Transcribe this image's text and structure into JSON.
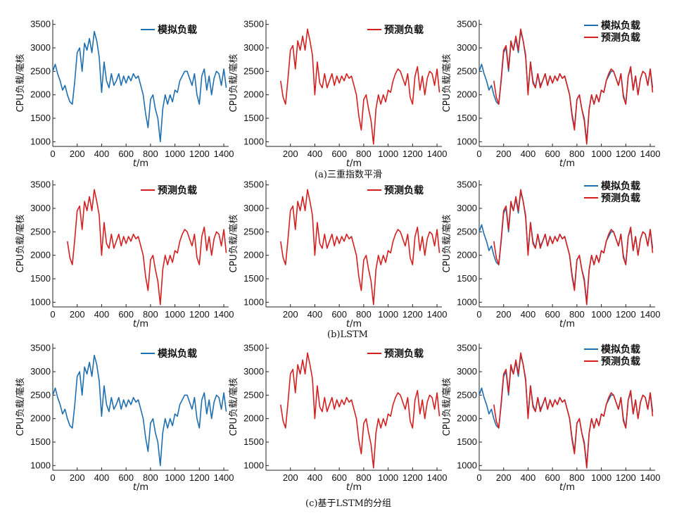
{
  "colors": {
    "simulated": "#1f6fb0",
    "predicted": "#d42020"
  },
  "captions": [
    "(a)三重指数平滑",
    "(b)LSTM",
    "(c)基于LSTM的分组"
  ],
  "legend_labels": {
    "simulated": "模拟负载",
    "predicted": "预测负载"
  },
  "chart_data": [
    {
      "type": "line",
      "row": 0,
      "col": 0,
      "xlabel": "t/m",
      "ylabel": "CPU负载/毫核",
      "xlim": [
        0,
        1440
      ],
      "ylim": [
        900,
        3600
      ],
      "xticks": [
        0,
        200,
        400,
        600,
        800,
        1000,
        1200,
        1400
      ],
      "yticks": [
        1000,
        1500,
        2000,
        2500,
        3000,
        3500
      ],
      "series": [
        "simulated"
      ],
      "legend": "top-right"
    },
    {
      "type": "line",
      "row": 0,
      "col": 1,
      "xlabel": "t/m",
      "ylabel": "CPU负载/毫核",
      "xlim": [
        0,
        1440
      ],
      "ylim": [
        900,
        3600
      ],
      "xticks": [
        200,
        400,
        600,
        800,
        1000,
        1200,
        1400
      ],
      "yticks": [
        1000,
        1500,
        2000,
        2500,
        3000,
        3500
      ],
      "series": [
        "predicted"
      ],
      "legend": "top-right"
    },
    {
      "type": "line",
      "row": 0,
      "col": 2,
      "xlabel": "t/m",
      "ylabel": "CPU负载/毫核",
      "xlim": [
        0,
        1440
      ],
      "ylim": [
        900,
        3600
      ],
      "xticks": [
        0,
        200,
        400,
        600,
        800,
        1000,
        1200,
        1400
      ],
      "yticks": [
        1000,
        1500,
        2000,
        2500,
        3000,
        3500
      ],
      "series": [
        "simulated",
        "predicted"
      ],
      "legend": "top-right"
    },
    {
      "type": "line",
      "row": 1,
      "col": 0,
      "xlabel": "t/m",
      "ylabel": "CPU负载/毫核",
      "xlim": [
        0,
        1440
      ],
      "ylim": [
        900,
        3600
      ],
      "xticks": [
        0,
        200,
        400,
        600,
        800,
        1000,
        1200,
        1400
      ],
      "yticks": [
        1000,
        1500,
        2000,
        2500,
        3000,
        3500
      ],
      "series": [
        "predicted"
      ],
      "legend": "top-right"
    },
    {
      "type": "line",
      "row": 1,
      "col": 1,
      "xlabel": "t/m",
      "ylabel": "CPU负载/毫核",
      "xlim": [
        0,
        1440
      ],
      "ylim": [
        900,
        3600
      ],
      "xticks": [
        200,
        400,
        600,
        800,
        1000,
        1200,
        1400
      ],
      "yticks": [
        1000,
        1500,
        2000,
        2500,
        3000,
        3500
      ],
      "series": [
        "predicted"
      ],
      "legend": "top-right"
    },
    {
      "type": "line",
      "row": 1,
      "col": 2,
      "xlabel": "t/m",
      "ylabel": "CPU负载/毫核",
      "xlim": [
        0,
        1440
      ],
      "ylim": [
        900,
        3600
      ],
      "xticks": [
        0,
        200,
        400,
        600,
        800,
        1000,
        1200,
        1400
      ],
      "yticks": [
        1000,
        1500,
        2000,
        2500,
        3000,
        3500
      ],
      "series": [
        "simulated",
        "predicted"
      ],
      "legend": "top-right"
    },
    {
      "type": "line",
      "row": 2,
      "col": 0,
      "xlabel": "t/m",
      "ylabel": "CPU负载/毫核",
      "xlim": [
        0,
        1440
      ],
      "ylim": [
        900,
        3600
      ],
      "xticks": [
        0,
        200,
        400,
        600,
        800,
        1000,
        1200,
        1400
      ],
      "yticks": [
        1000,
        1500,
        2000,
        2500,
        3000,
        3500
      ],
      "series": [
        "simulated"
      ],
      "legend": "top-right"
    },
    {
      "type": "line",
      "row": 2,
      "col": 1,
      "xlabel": "t/m",
      "ylabel": "CPU负载/毫核",
      "xlim": [
        0,
        1440
      ],
      "ylim": [
        900,
        3600
      ],
      "xticks": [
        200,
        400,
        600,
        800,
        1000,
        1200,
        1400
      ],
      "yticks": [
        1000,
        1500,
        2000,
        2500,
        3000,
        3500
      ],
      "series": [
        "predicted"
      ],
      "legend": "top-right"
    },
    {
      "type": "line",
      "row": 2,
      "col": 2,
      "xlabel": "t/m",
      "ylabel": "CPU负载/毫核",
      "xlim": [
        0,
        1440
      ],
      "ylim": [
        900,
        3600
      ],
      "xticks": [
        0,
        200,
        400,
        600,
        800,
        1000,
        1200,
        1400
      ],
      "yticks": [
        1000,
        1500,
        2000,
        2500,
        3000,
        3500
      ],
      "series": [
        "simulated",
        "predicted"
      ],
      "legend": "top-right"
    }
  ],
  "series_data": {
    "simulated": {
      "x": [
        0,
        20,
        40,
        60,
        80,
        100,
        120,
        140,
        160,
        180,
        200,
        220,
        240,
        260,
        280,
        300,
        320,
        340,
        360,
        380,
        400,
        420,
        440,
        460,
        480,
        500,
        520,
        540,
        560,
        580,
        600,
        620,
        640,
        660,
        680,
        700,
        720,
        740,
        760,
        780,
        800,
        820,
        840,
        860,
        880,
        900,
        920,
        940,
        960,
        980,
        1000,
        1020,
        1040,
        1060,
        1080,
        1100,
        1120,
        1140,
        1160,
        1180,
        1200,
        1220,
        1240,
        1260,
        1280,
        1300,
        1320,
        1340,
        1360,
        1380,
        1400,
        1420
      ],
      "y": [
        2500,
        2650,
        2450,
        2300,
        2100,
        2200,
        2000,
        1850,
        1800,
        2300,
        2900,
        3000,
        2500,
        3100,
        2950,
        3200,
        2900,
        3350,
        3150,
        2800,
        2050,
        2700,
        2300,
        2150,
        2450,
        2200,
        2300,
        2450,
        2200,
        2400,
        2250,
        2400,
        2300,
        2450,
        2350,
        2400,
        2200,
        2000,
        1600,
        1300,
        1900,
        2000,
        1700,
        1500,
        1000,
        1700,
        2000,
        1800,
        2000,
        1850,
        2100,
        2050,
        2300,
        2400,
        2500,
        2500,
        2350,
        2200,
        2450,
        2000,
        1800,
        2400,
        2550,
        2100,
        2400,
        2000,
        2350,
        2500,
        2450,
        2200,
        2550,
        2150
      ]
    },
    "predicted": {
      "x": [
        120,
        140,
        160,
        180,
        200,
        220,
        240,
        260,
        280,
        300,
        320,
        340,
        360,
        380,
        400,
        420,
        440,
        460,
        480,
        500,
        520,
        540,
        560,
        580,
        600,
        620,
        640,
        660,
        680,
        700,
        720,
        740,
        760,
        780,
        800,
        820,
        840,
        860,
        880,
        900,
        920,
        940,
        960,
        980,
        1000,
        1020,
        1040,
        1060,
        1080,
        1100,
        1120,
        1140,
        1160,
        1180,
        1200,
        1220,
        1240,
        1260,
        1280,
        1300,
        1320,
        1340,
        1360,
        1380,
        1400,
        1420
      ],
      "y": [
        2300,
        1950,
        1800,
        2350,
        2950,
        3050,
        2550,
        3150,
        2950,
        3250,
        2950,
        3400,
        3150,
        2850,
        2000,
        2700,
        2250,
        2150,
        2450,
        2150,
        2300,
        2450,
        2200,
        2400,
        2250,
        2400,
        2300,
        2450,
        2350,
        2400,
        2200,
        2000,
        1550,
        1250,
        1900,
        2000,
        1700,
        1450,
        950,
        1700,
        2000,
        1800,
        2000,
        1850,
        2100,
        2050,
        2300,
        2450,
        2550,
        2500,
        2350,
        2200,
        2450,
        1950,
        1800,
        2400,
        2600,
        2100,
        2400,
        2000,
        2350,
        2500,
        2450,
        2200,
        2550,
        2050
      ]
    }
  }
}
